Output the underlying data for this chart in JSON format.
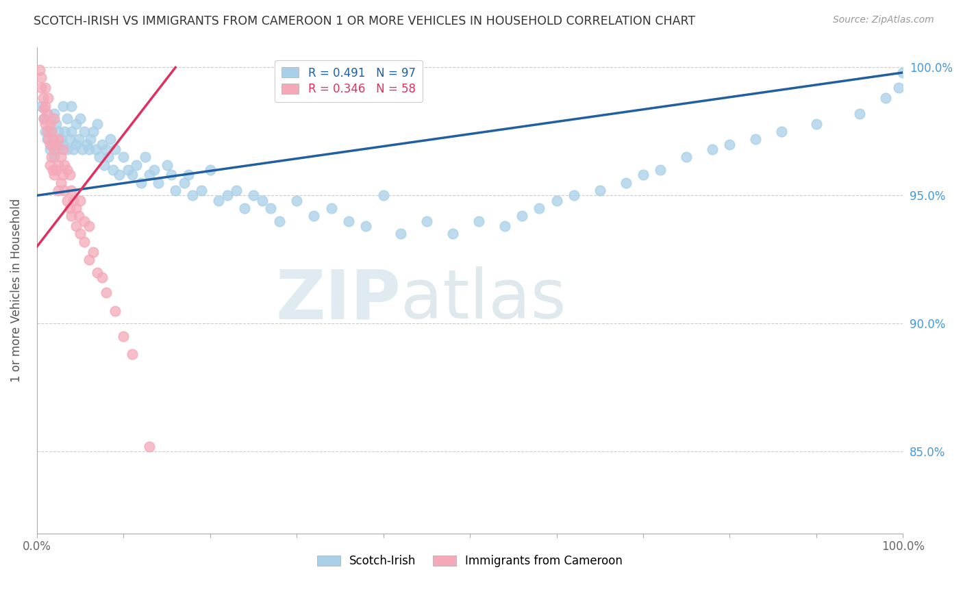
{
  "title": "SCOTCH-IRISH VS IMMIGRANTS FROM CAMEROON 1 OR MORE VEHICLES IN HOUSEHOLD CORRELATION CHART",
  "source": "Source: ZipAtlas.com",
  "ylabel": "1 or more Vehicles in Household",
  "x_min": 0.0,
  "x_max": 1.0,
  "y_min": 0.818,
  "y_max": 1.008,
  "yticks": [
    0.85,
    0.9,
    0.95,
    1.0
  ],
  "ytick_labels": [
    "85.0%",
    "90.0%",
    "95.0%",
    "100.0%"
  ],
  "xticks": [
    0.0,
    0.1,
    0.2,
    0.3,
    0.4,
    0.5,
    0.6,
    0.7,
    0.8,
    0.9,
    1.0
  ],
  "xtick_labels": [
    "0.0%",
    "",
    "",
    "",
    "",
    "",
    "",
    "",
    "",
    "",
    "100.0%"
  ],
  "legend_entries": [
    "Scotch-Irish",
    "Immigrants from Cameroon"
  ],
  "blue_color": "#a8d0e8",
  "pink_color": "#f4a8b8",
  "blue_line_color": "#2060a0",
  "pink_line_color": "#e03060",
  "blue_R": 0.491,
  "blue_N": 97,
  "pink_R": 0.346,
  "pink_N": 58,
  "watermark_zip": "ZIP",
  "watermark_atlas": "atlas",
  "blue_scatter_x": [
    0.005,
    0.008,
    0.01,
    0.012,
    0.015,
    0.015,
    0.018,
    0.02,
    0.02,
    0.022,
    0.025,
    0.025,
    0.028,
    0.03,
    0.03,
    0.032,
    0.035,
    0.035,
    0.038,
    0.04,
    0.04,
    0.042,
    0.045,
    0.045,
    0.048,
    0.05,
    0.052,
    0.055,
    0.058,
    0.06,
    0.062,
    0.065,
    0.068,
    0.07,
    0.072,
    0.075,
    0.078,
    0.08,
    0.082,
    0.085,
    0.088,
    0.09,
    0.095,
    0.1,
    0.105,
    0.11,
    0.115,
    0.12,
    0.125,
    0.13,
    0.135,
    0.14,
    0.15,
    0.155,
    0.16,
    0.17,
    0.175,
    0.18,
    0.19,
    0.2,
    0.21,
    0.22,
    0.23,
    0.24,
    0.25,
    0.26,
    0.27,
    0.28,
    0.3,
    0.32,
    0.34,
    0.36,
    0.38,
    0.4,
    0.42,
    0.45,
    0.48,
    0.51,
    0.54,
    0.56,
    0.58,
    0.6,
    0.62,
    0.65,
    0.68,
    0.7,
    0.72,
    0.75,
    0.78,
    0.8,
    0.83,
    0.86,
    0.9,
    0.95,
    0.98,
    0.995,
    1.0
  ],
  "blue_scatter_y": [
    0.985,
    0.98,
    0.975,
    0.972,
    0.968,
    0.975,
    0.97,
    0.982,
    0.965,
    0.978,
    0.975,
    0.968,
    0.972,
    0.985,
    0.97,
    0.975,
    0.968,
    0.98,
    0.972,
    0.985,
    0.975,
    0.968,
    0.978,
    0.97,
    0.972,
    0.98,
    0.968,
    0.975,
    0.97,
    0.968,
    0.972,
    0.975,
    0.968,
    0.978,
    0.965,
    0.97,
    0.962,
    0.968,
    0.965,
    0.972,
    0.96,
    0.968,
    0.958,
    0.965,
    0.96,
    0.958,
    0.962,
    0.955,
    0.965,
    0.958,
    0.96,
    0.955,
    0.962,
    0.958,
    0.952,
    0.955,
    0.958,
    0.95,
    0.952,
    0.96,
    0.948,
    0.95,
    0.952,
    0.945,
    0.95,
    0.948,
    0.945,
    0.94,
    0.948,
    0.942,
    0.945,
    0.94,
    0.938,
    0.95,
    0.935,
    0.94,
    0.935,
    0.94,
    0.938,
    0.942,
    0.945,
    0.948,
    0.95,
    0.952,
    0.955,
    0.958,
    0.96,
    0.965,
    0.968,
    0.97,
    0.972,
    0.975,
    0.978,
    0.982,
    0.988,
    0.992,
    0.998
  ],
  "pink_scatter_x": [
    0.003,
    0.005,
    0.005,
    0.007,
    0.008,
    0.008,
    0.01,
    0.01,
    0.01,
    0.012,
    0.012,
    0.013,
    0.013,
    0.015,
    0.015,
    0.015,
    0.017,
    0.017,
    0.018,
    0.018,
    0.02,
    0.02,
    0.02,
    0.022,
    0.022,
    0.025,
    0.025,
    0.025,
    0.028,
    0.028,
    0.03,
    0.03,
    0.032,
    0.032,
    0.035,
    0.035,
    0.038,
    0.038,
    0.04,
    0.04,
    0.042,
    0.045,
    0.045,
    0.048,
    0.05,
    0.05,
    0.055,
    0.055,
    0.06,
    0.06,
    0.065,
    0.07,
    0.075,
    0.08,
    0.09,
    0.1,
    0.11,
    0.13
  ],
  "pink_scatter_y": [
    0.999,
    0.996,
    0.992,
    0.988,
    0.984,
    0.98,
    0.992,
    0.985,
    0.978,
    0.982,
    0.975,
    0.988,
    0.972,
    0.978,
    0.97,
    0.962,
    0.975,
    0.965,
    0.972,
    0.96,
    0.98,
    0.968,
    0.958,
    0.97,
    0.96,
    0.972,
    0.962,
    0.952,
    0.965,
    0.955,
    0.968,
    0.958,
    0.962,
    0.952,
    0.96,
    0.948,
    0.958,
    0.945,
    0.952,
    0.942,
    0.948,
    0.945,
    0.938,
    0.942,
    0.948,
    0.935,
    0.94,
    0.932,
    0.938,
    0.925,
    0.928,
    0.92,
    0.918,
    0.912,
    0.905,
    0.895,
    0.888,
    0.852
  ]
}
